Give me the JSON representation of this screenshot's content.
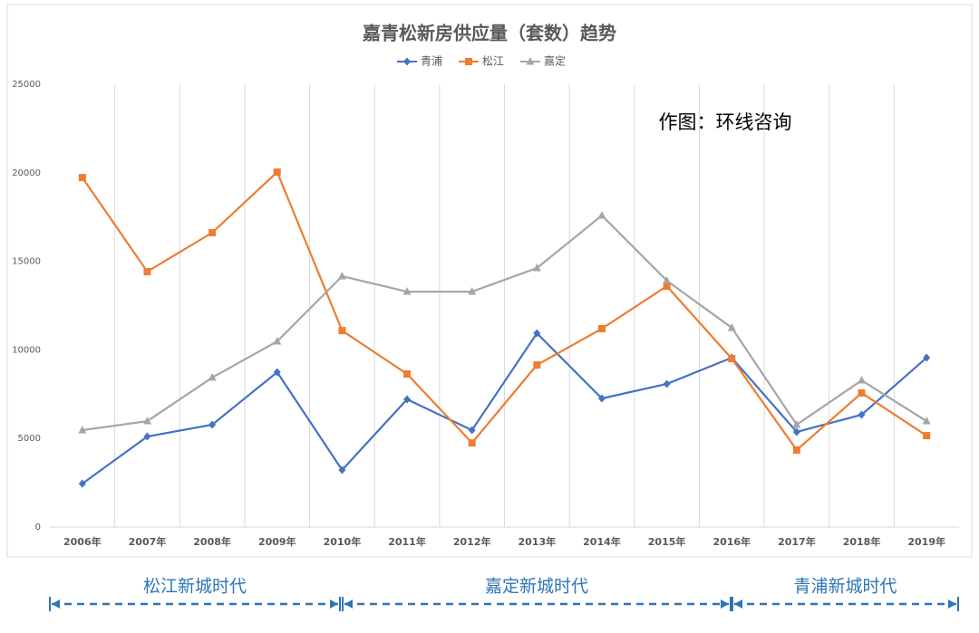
{
  "chart_data": {
    "type": "line",
    "title": "嘉青松新房供应量（套数）趋势",
    "annotation": "作图：环线咨询",
    "eras": [
      "松江新城时代",
      "嘉定新城时代",
      "青浦新城时代"
    ],
    "categories": [
      "2006年",
      "2007年",
      "2008年",
      "2009年",
      "2010年",
      "2011年",
      "2012年",
      "2013年",
      "2014年",
      "2015年",
      "2016年",
      "2017年",
      "2018年",
      "2019年"
    ],
    "series": [
      {
        "name": "青浦",
        "color": "#4472c4",
        "marker": "diamond",
        "values": [
          2450,
          5110,
          5780,
          8740,
          3220,
          7210,
          5470,
          10940,
          7260,
          8080,
          9560,
          5370,
          6340,
          9560
        ]
      },
      {
        "name": "松江",
        "color": "#ed7d31",
        "marker": "square",
        "values": [
          19730,
          14420,
          16620,
          20040,
          11090,
          8640,
          4750,
          9150,
          11200,
          13600,
          9510,
          4350,
          7570,
          5160
        ]
      },
      {
        "name": "嘉定",
        "color": "#a5a5a5",
        "marker": "triangle",
        "values": [
          5470,
          5980,
          8440,
          10480,
          14160,
          13290,
          13290,
          14620,
          17590,
          13910,
          11250,
          5780,
          8280,
          5980
        ]
      }
    ],
    "ylim": [
      0,
      25000
    ],
    "yticks": [
      0,
      5000,
      10000,
      15000,
      20000,
      25000
    ],
    "legend": "top"
  }
}
